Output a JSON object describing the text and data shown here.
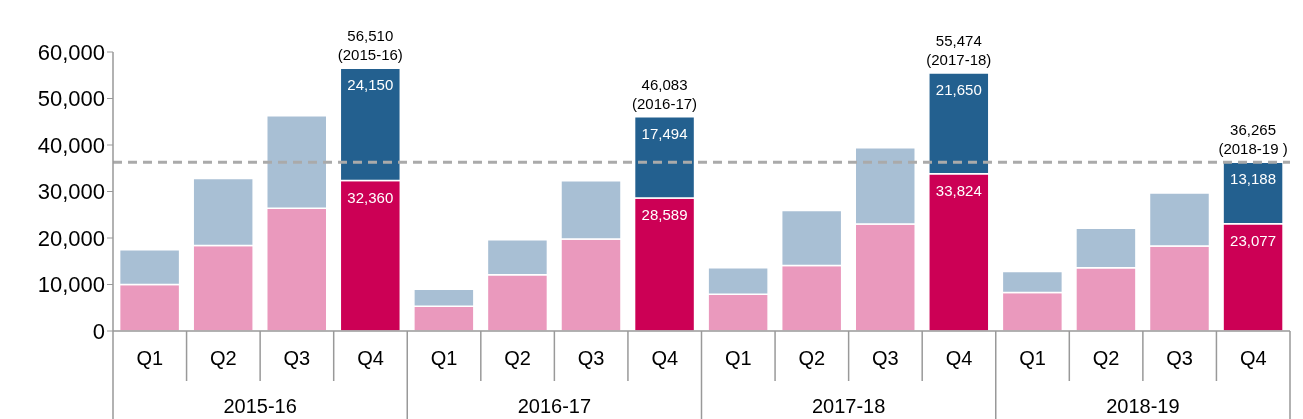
{
  "chart_data": {
    "type": "bar",
    "stacked": true,
    "categories": [
      "Q1",
      "Q2",
      "Q3",
      "Q4",
      "Q1",
      "Q2",
      "Q3",
      "Q4",
      "Q1",
      "Q2",
      "Q3",
      "Q4",
      "Q1",
      "Q2",
      "Q3",
      "Q4"
    ],
    "series": [
      {
        "colors": [
          "#ea99bd",
          "#ea99bd",
          "#ea99bd",
          "#cc0055",
          "#ea99bd",
          "#ea99bd",
          "#ea99bd",
          "#cc0055",
          "#ea99bd",
          "#ea99bd",
          "#ea99bd",
          "#cc0055",
          "#ea99bd",
          "#ea99bd",
          "#ea99bd",
          "#cc0055"
        ],
        "values": [
          10000,
          18400,
          26400,
          32360,
          5300,
          12100,
          19800,
          28589,
          7900,
          14100,
          23000,
          33824,
          8300,
          13600,
          18300,
          23077
        ],
        "value_labels": [
          null,
          null,
          null,
          "32,360",
          null,
          null,
          null,
          "28,589",
          null,
          null,
          null,
          "33,824",
          null,
          null,
          null,
          "23,077"
        ]
      },
      {
        "colors": [
          "#a8bfd4",
          "#a8bfd4",
          "#a8bfd4",
          "#23608f",
          "#a8bfd4",
          "#a8bfd4",
          "#a8bfd4",
          "#23608f",
          "#a8bfd4",
          "#a8bfd4",
          "#a8bfd4",
          "#23608f",
          "#a8bfd4",
          "#a8bfd4",
          "#a8bfd4",
          "#23608f"
        ],
        "values": [
          7500,
          14400,
          19900,
          24150,
          3700,
          7500,
          12500,
          17494,
          5700,
          11800,
          16400,
          21650,
          4500,
          8500,
          11400,
          13188
        ],
        "value_labels": [
          null,
          null,
          null,
          "24,150",
          null,
          null,
          null,
          "17,494",
          null,
          null,
          null,
          "21,650",
          null,
          null,
          null,
          "13,188"
        ]
      }
    ],
    "totals": [
      null,
      null,
      null,
      "56,510\n(2015-16)",
      null,
      null,
      null,
      "46,083\n(2016-17)",
      null,
      null,
      null,
      "55,474\n(2017-18)",
      null,
      null,
      null,
      "36,265\n(2018-19  )"
    ],
    "annotations": [
      "2015-16",
      "2016-17",
      "2017-18",
      "2018-19"
    ],
    "ylim": [
      0,
      60000
    ],
    "yticks": [
      0,
      {
        "value": 10000,
        "label": "10,000"
      },
      {
        "value": 20000,
        "label": "20,000"
      },
      {
        "value": 30000,
        "label": "30,000"
      },
      {
        "value": 40000,
        "label": "40,000"
      },
      {
        "value": 50000,
        "label": "50,000"
      },
      {
        "value": 60000,
        "label": "60,000"
      }
    ],
    "ref_lines": [
      {
        "axis": "y",
        "value": 36265,
        "color": "#aaaaaa",
        "line_style": "dashed"
      }
    ],
    "grid": false,
    "legend": false
  }
}
